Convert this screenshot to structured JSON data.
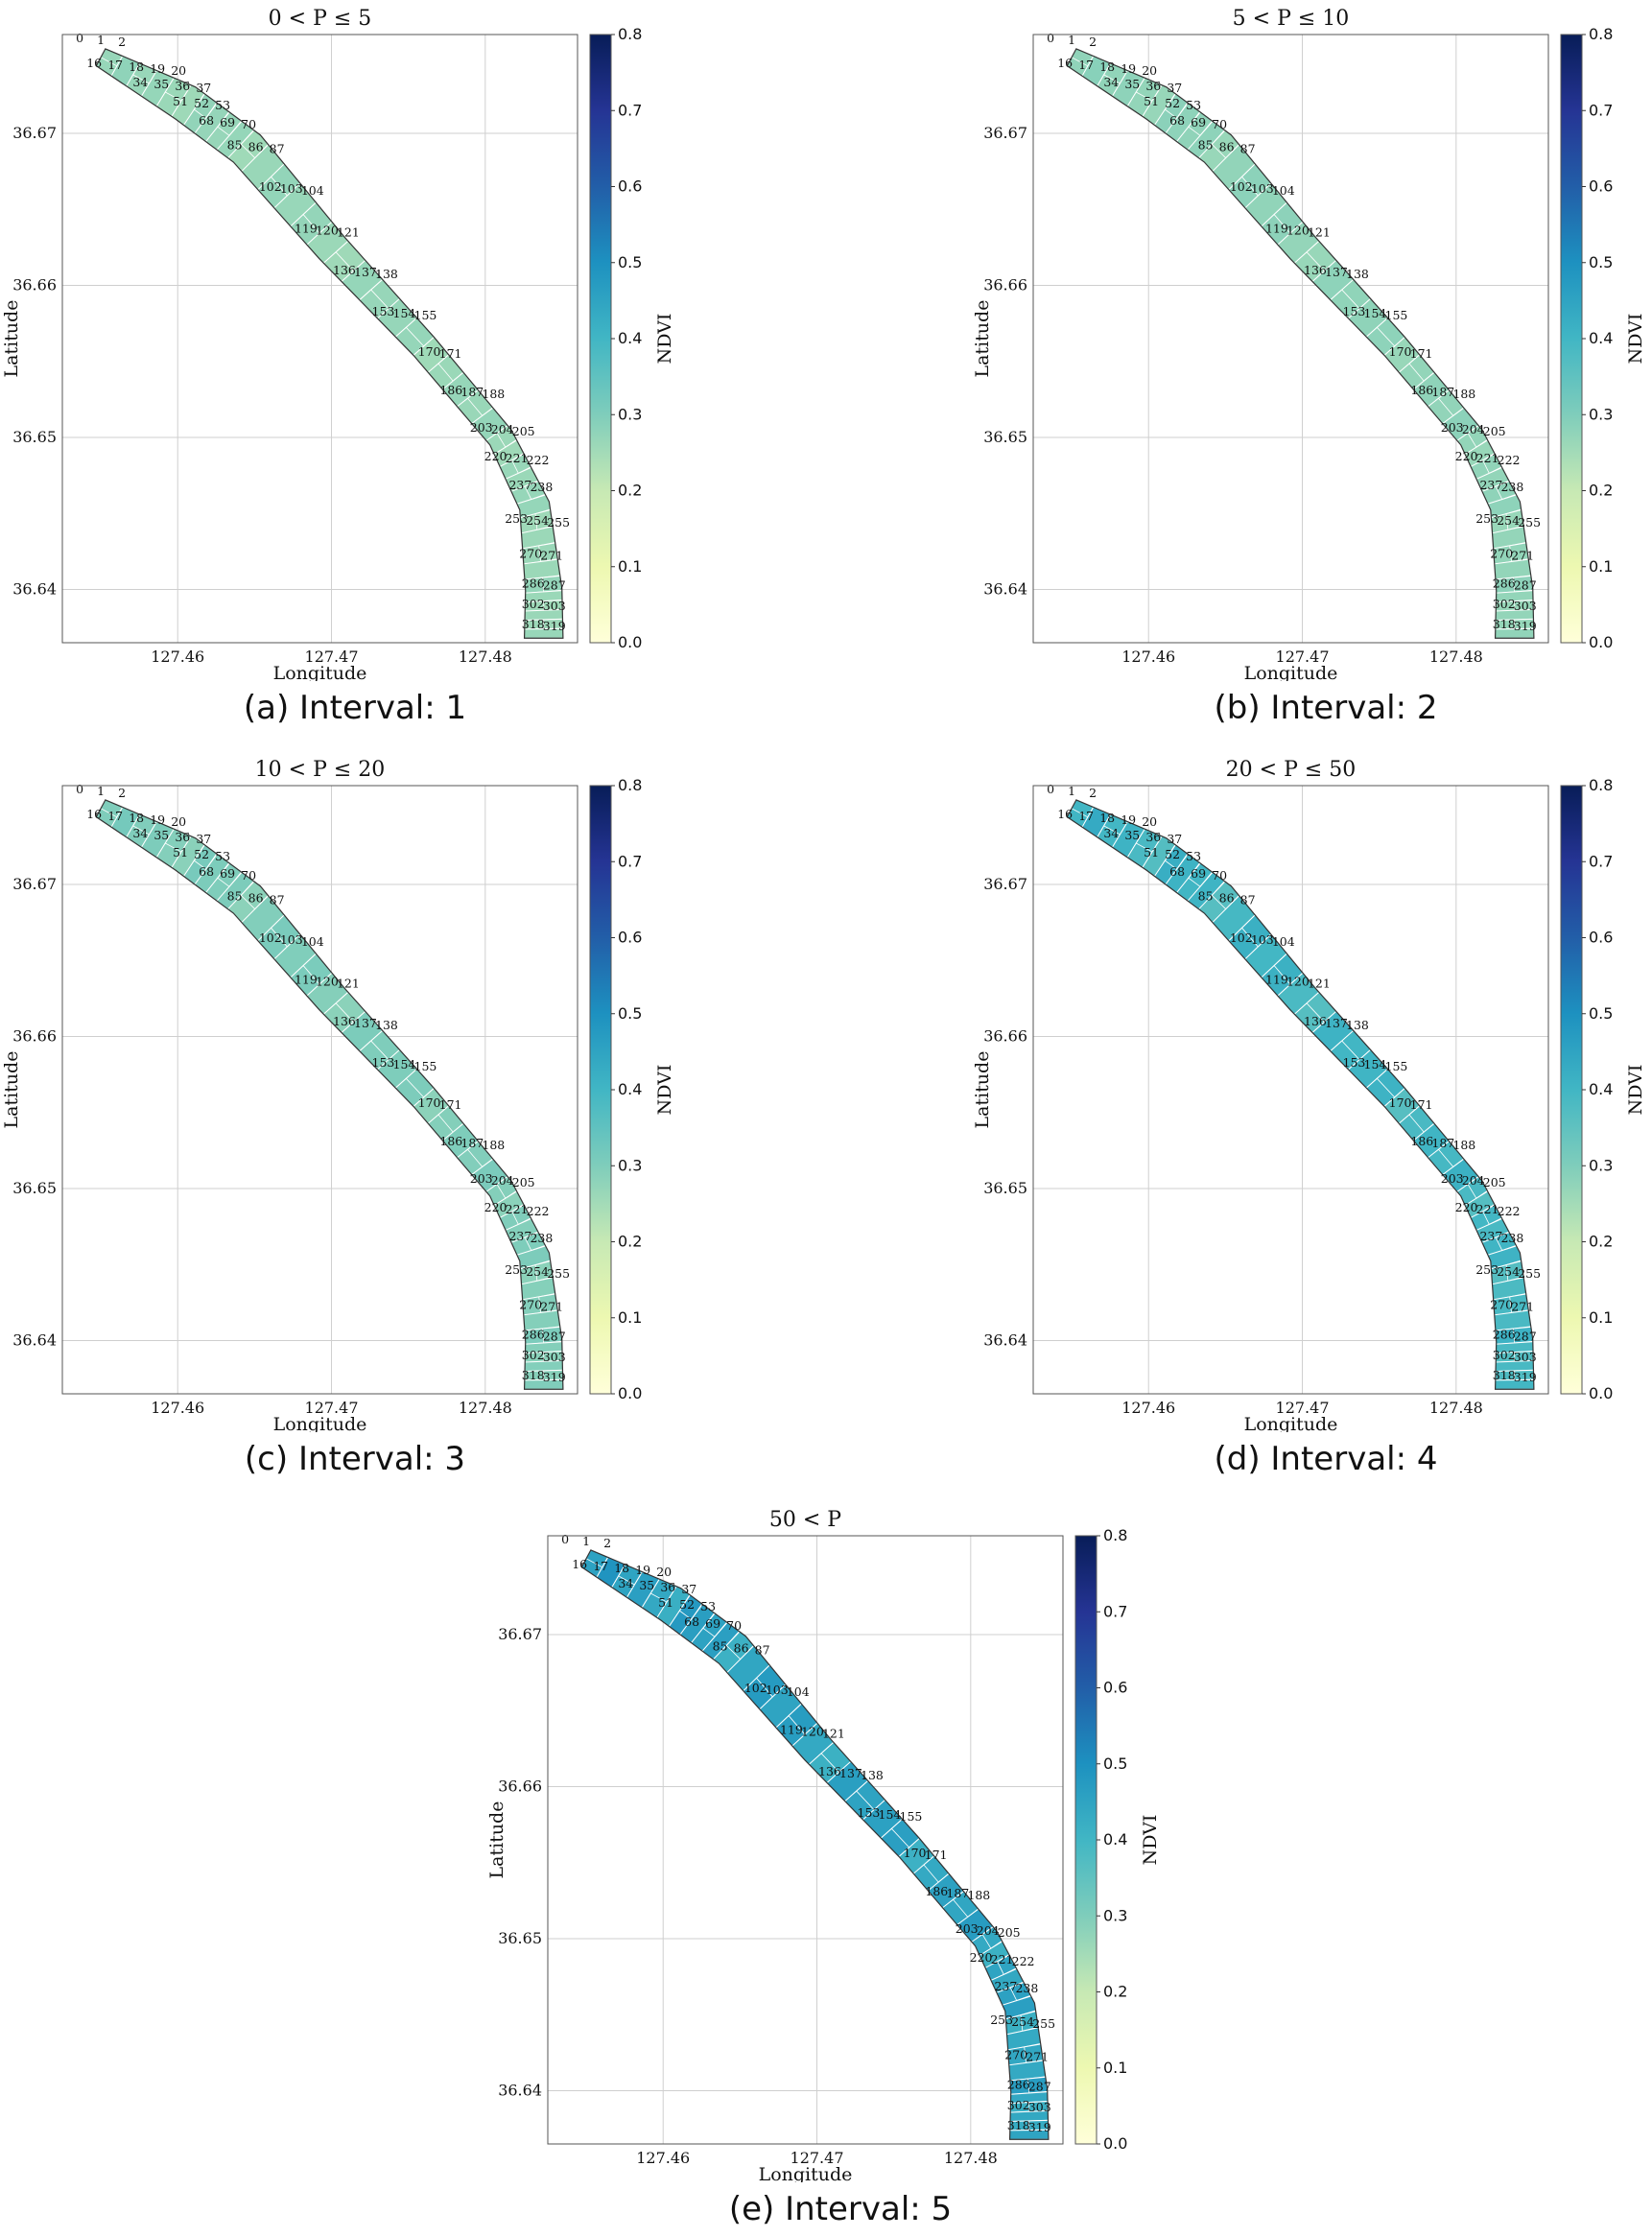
{
  "chart_data": {
    "type": "heatmap",
    "colorbar": {
      "label": "NDVI",
      "range": [
        0.0,
        0.8
      ],
      "ticks": [
        "0.0",
        "0.1",
        "0.2",
        "0.3",
        "0.4",
        "0.5",
        "0.6",
        "0.7",
        "0.8"
      ],
      "colormap_stops": [
        "#ffffd9",
        "#edf8b1",
        "#c7e9b4",
        "#7fcdbb",
        "#41b6c4",
        "#1d91c0",
        "#225ea8",
        "#253494",
        "#081d58"
      ]
    },
    "xlabel": "Longitude",
    "ylabel": "Latitude",
    "x_ticks": [
      "127.46",
      "127.47",
      "127.48"
    ],
    "y_ticks": [
      "36.67",
      "36.66",
      "36.65",
      "36.64"
    ],
    "xlim": [
      127.4525,
      127.486
    ],
    "ylim": [
      36.6365,
      36.6765
    ],
    "grid": true,
    "cell_labels": [
      [
        "0",
        "1",
        "2"
      ],
      [
        "16",
        "17",
        "18",
        "19",
        "20"
      ],
      [
        "34",
        "35",
        "36",
        "37"
      ],
      [
        "51",
        "52",
        "53"
      ],
      [
        "68",
        "69",
        "70"
      ],
      [
        "85",
        "86",
        "87"
      ],
      [
        "102",
        "103",
        "104"
      ],
      [
        "119",
        "120",
        "121"
      ],
      [
        "136",
        "137",
        "138"
      ],
      [
        "153",
        "154",
        "155"
      ],
      [
        "170",
        "171"
      ],
      [
        "186",
        "187",
        "188"
      ],
      [
        "203",
        "204",
        "205"
      ],
      [
        "220",
        "221",
        "222"
      ],
      [
        "237",
        "238"
      ],
      [
        "253",
        "254",
        "255"
      ],
      [
        "270",
        "271"
      ],
      [
        "286",
        "287"
      ],
      [
        "302",
        "303"
      ],
      [
        "318",
        "319"
      ]
    ],
    "panels": [
      {
        "title": "0 < P ≤ 5",
        "caption": "(a) Interval: 1",
        "ndvi_range": [
          0.24,
          0.28
        ]
      },
      {
        "title": "5 < P ≤ 10",
        "caption": "(b) Interval: 2",
        "ndvi_range": [
          0.25,
          0.29
        ]
      },
      {
        "title": "10 < P ≤ 20",
        "caption": "(c) Interval: 3",
        "ndvi_range": [
          0.26,
          0.32
        ]
      },
      {
        "title": "20 < P ≤ 50",
        "caption": "(d) Interval: 4",
        "ndvi_range": [
          0.32,
          0.44
        ]
      },
      {
        "title": "50 < P",
        "caption": "(e) Interval: 5",
        "ndvi_range": [
          0.36,
          0.5
        ]
      }
    ]
  }
}
